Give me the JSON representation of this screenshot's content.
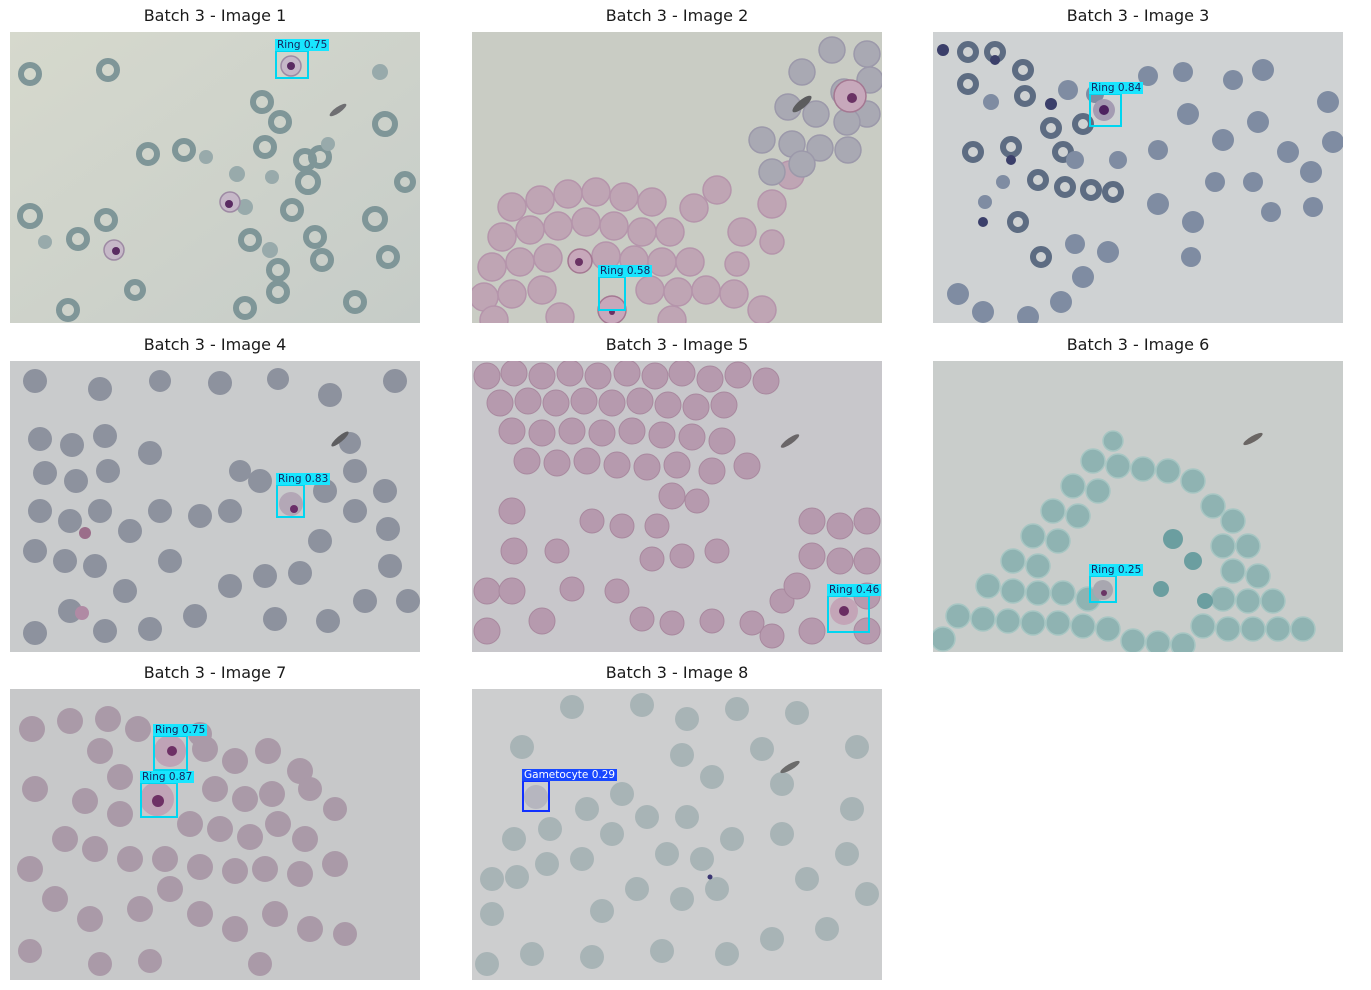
{
  "panels": [
    {
      "title": "Batch 3 - Image 1",
      "detections": [
        {
          "label": "Ring 0.75",
          "class": "ring"
        }
      ],
      "theme": "gray-green"
    },
    {
      "title": "Batch 3 - Image 2",
      "detections": [
        {
          "label": "Ring 0.58",
          "class": "ring"
        }
      ],
      "theme": "pink"
    },
    {
      "title": "Batch 3 - Image 3",
      "detections": [
        {
          "label": "Ring 0.84",
          "class": "ring"
        }
      ],
      "theme": "blue-gray"
    },
    {
      "title": "Batch 3 - Image 4",
      "detections": [
        {
          "label": "Ring 0.83",
          "class": "ring"
        }
      ],
      "theme": "gray-blue"
    },
    {
      "title": "Batch 3 - Image 5",
      "detections": [
        {
          "label": "Ring 0.46",
          "class": "ring"
        }
      ],
      "theme": "mauve"
    },
    {
      "title": "Batch 3 - Image 6",
      "detections": [
        {
          "label": "Ring 0.25",
          "class": "ring"
        }
      ],
      "theme": "teal"
    },
    {
      "title": "Batch 3 - Image 7",
      "detections": [
        {
          "label": "Ring 0.75",
          "class": "ring"
        },
        {
          "label": "Ring 0.87",
          "class": "ring"
        }
      ],
      "theme": "rose-gray"
    },
    {
      "title": "Batch 3 - Image 8",
      "detections": [
        {
          "label": "Gametocyte 0.29",
          "class": "gametocyte"
        }
      ],
      "theme": "pale-gray"
    }
  ],
  "colors": {
    "ring_box": "#00d6f0",
    "gametocyte_box": "#1030ff"
  }
}
